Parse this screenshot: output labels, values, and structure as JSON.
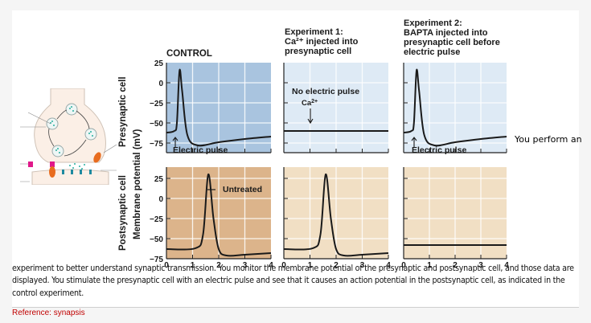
{
  "figure": {
    "panels": [
      {
        "id": "control",
        "title_lines": [
          "CONTROL"
        ]
      },
      {
        "id": "exp1",
        "title_lines": [
          "Experiment 1:",
          "Ca²⁺ injected into",
          "presynaptic cell"
        ]
      },
      {
        "id": "exp2",
        "title_lines": [
          "Experiment 2:",
          "BAPTA injected into",
          "presynaptic cell before",
          "electric pulse"
        ]
      }
    ],
    "y_axis_label": "Membrane potential (mV)",
    "row_labels": {
      "presynaptic": "Presynaptic cell",
      "postsynaptic": "Postsynaptic cell"
    },
    "annotations": {
      "control_pre": "Electric pulse",
      "control_post": "Untreated",
      "exp1_pre_line1": "No electric pulse",
      "exp1_pre_line2": "Ca²⁺",
      "exp2_pre": "Electric pulse"
    },
    "colors": {
      "control_pre_bg": "#a9c4df",
      "control_post_bg": "#dcb48b",
      "exp_pre_bg": "#deeaf5",
      "exp_post_bg": "#f1dfc4",
      "trace": "#1a1a1a"
    }
  },
  "chart_data": [
    {
      "type": "line",
      "title": "CONTROL – Presynaptic cell",
      "xlabel": "",
      "ylabel": "Membrane potential (mV)",
      "xlim": [
        0,
        4
      ],
      "ylim": [
        -75,
        25
      ],
      "x_ticks": [
        "0",
        "1",
        "2",
        "3",
        "4"
      ],
      "y_ticks": [
        "25",
        "0",
        "−25",
        "−50",
        "−75"
      ],
      "series": [
        {
          "name": "presynaptic",
          "points": [
            [
              0,
              -62
            ],
            [
              0.3,
              -60
            ],
            [
              0.4,
              -50
            ],
            [
              0.5,
              15
            ],
            [
              0.6,
              -10
            ],
            [
              0.8,
              -65
            ],
            [
              1.2,
              -78
            ],
            [
              2,
              -74
            ],
            [
              3,
              -70
            ],
            [
              4,
              -67
            ]
          ]
        }
      ]
    },
    {
      "type": "line",
      "title": "CONTROL – Postsynaptic cell",
      "xlabel": "",
      "ylabel": "Membrane potential (mV)",
      "xlim": [
        0,
        4
      ],
      "ylim": [
        -75,
        25
      ],
      "x_ticks": [
        "0",
        "1",
        "2",
        "3",
        "4"
      ],
      "y_ticks": [
        "25",
        "0",
        "−25",
        "−50",
        "−75"
      ],
      "series": [
        {
          "name": "Untreated",
          "points": [
            [
              0,
              -63
            ],
            [
              1.1,
              -62
            ],
            [
              1.4,
              -45
            ],
            [
              1.6,
              30
            ],
            [
              1.8,
              -25
            ],
            [
              2,
              -63
            ],
            [
              2.3,
              -71
            ],
            [
              3,
              -70
            ],
            [
              4,
              -68
            ]
          ]
        }
      ]
    },
    {
      "type": "line",
      "title": "Experiment 1 – Presynaptic cell",
      "xlim": [
        0,
        4
      ],
      "ylim": [
        -75,
        25
      ],
      "x_ticks": [
        "0",
        "1",
        "2",
        "3",
        "4"
      ],
      "series": [
        {
          "name": "presynaptic",
          "points": [
            [
              0,
              -60
            ],
            [
              4,
              -60
            ]
          ]
        }
      ]
    },
    {
      "type": "line",
      "title": "Experiment 1 – Postsynaptic cell",
      "xlim": [
        0,
        4
      ],
      "ylim": [
        -75,
        25
      ],
      "x_ticks": [
        "0",
        "1",
        "2",
        "3",
        "4"
      ],
      "series": [
        {
          "name": "postsynaptic",
          "points": [
            [
              0,
              -63
            ],
            [
              1.1,
              -62
            ],
            [
              1.4,
              -45
            ],
            [
              1.6,
              30
            ],
            [
              1.8,
              -25
            ],
            [
              2,
              -63
            ],
            [
              2.3,
              -71
            ],
            [
              3,
              -70
            ],
            [
              4,
              -68
            ]
          ]
        }
      ]
    },
    {
      "type": "line",
      "title": "Experiment 2 – Presynaptic cell",
      "xlim": [
        0,
        4
      ],
      "ylim": [
        -75,
        25
      ],
      "x_ticks": [
        "0",
        "1",
        "2",
        "3",
        "4"
      ],
      "series": [
        {
          "name": "presynaptic",
          "points": [
            [
              0,
              -62
            ],
            [
              0.3,
              -60
            ],
            [
              0.4,
              -50
            ],
            [
              0.5,
              15
            ],
            [
              0.6,
              -10
            ],
            [
              0.8,
              -65
            ],
            [
              1.2,
              -78
            ],
            [
              2,
              -74
            ],
            [
              3,
              -70
            ],
            [
              4,
              -67
            ]
          ]
        }
      ]
    },
    {
      "type": "line",
      "title": "Experiment 2 – Postsynaptic cell",
      "xlim": [
        0,
        4
      ],
      "ylim": [
        -75,
        25
      ],
      "x_ticks": [
        "0",
        "1",
        "2",
        "3",
        "4"
      ],
      "series": [
        {
          "name": "postsynaptic",
          "points": [
            [
              0,
              -58
            ],
            [
              4,
              -58
            ]
          ]
        }
      ]
    }
  ],
  "side_text": "You perform an",
  "paragraph": "experiment to better understand synaptic transmission. You monitor the membrane potential of the presynaptic and postsynaptic cell, and those data are displayed. You stimulate the presynaptic cell with an electric pulse and see that it causes an action potential in the postsynaptic cell, as indicated in the control experiment.",
  "reference": "Reference: synapsis"
}
